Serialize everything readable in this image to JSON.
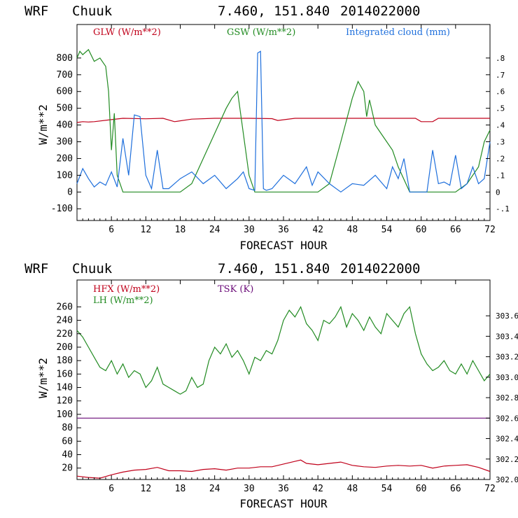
{
  "colors": {
    "red": "#c0001a",
    "green": "#228b22",
    "blue": "#1e6fdc",
    "purple": "#6a0a78",
    "axis": "#000000"
  },
  "chart_data": [
    {
      "type": "line",
      "header": {
        "model": "WRF",
        "station": "Chuuk",
        "coords": "7.460, 151.840",
        "date": "2014022000"
      },
      "xlabel": "FORECAST HOUR",
      "ylabel": "W/m**2",
      "xlim": [
        0,
        72
      ],
      "ylim": [
        -170,
        1000
      ],
      "xticks": [
        "6",
        "12",
        "18",
        "24",
        "30",
        "36",
        "42",
        "48",
        "54",
        "60",
        "66",
        "72"
      ],
      "yticks": [
        "-100",
        "0",
        "100",
        "200",
        "300",
        "400",
        "500",
        "600",
        "700",
        "800"
      ],
      "y2lim": [
        -0.17,
        1.0
      ],
      "y2ticks": [
        "-.1",
        "0",
        ".1",
        ".2",
        ".3",
        ".4",
        ".5",
        ".6",
        ".7",
        ".8"
      ],
      "series": [
        {
          "name": "GLW (W/m**2)",
          "color": "red",
          "axis": "left",
          "x": [
            0,
            1,
            2,
            3,
            6,
            8,
            12,
            15,
            17,
            20,
            24,
            30,
            34,
            35,
            38,
            46,
            50,
            54,
            59,
            60,
            62,
            63,
            70,
            72
          ],
          "y": [
            415,
            420,
            418,
            420,
            432,
            440,
            437,
            440,
            420,
            435,
            440,
            440,
            438,
            427,
            440,
            440,
            440,
            440,
            440,
            420,
            420,
            440,
            440,
            440
          ]
        },
        {
          "name": "GSW (W/m**2)",
          "color": "green",
          "axis": "left",
          "x": [
            0,
            0.5,
            1,
            2,
            3,
            4,
            5,
            5.5,
            6,
            6.5,
            7,
            8,
            10,
            18,
            20,
            22,
            24,
            26,
            27,
            28,
            30,
            31,
            33,
            35,
            42,
            44,
            46,
            48,
            49,
            50,
            50.5,
            51,
            52,
            53,
            55,
            56,
            58,
            66,
            68,
            70,
            71,
            72
          ],
          "y": [
            800,
            840,
            820,
            850,
            780,
            800,
            750,
            600,
            250,
            470,
            100,
            0,
            0,
            0,
            50,
            200,
            350,
            500,
            560,
            600,
            100,
            0,
            0,
            0,
            0,
            50,
            300,
            560,
            660,
            600,
            450,
            550,
            400,
            350,
            250,
            150,
            0,
            0,
            50,
            150,
            300,
            370
          ]
        },
        {
          "name": "Integrated cloud (mm)",
          "color": "blue",
          "axis": "right",
          "x": [
            0,
            1,
            2,
            3,
            4,
            5,
            6,
            7,
            8,
            9,
            10,
            11,
            12,
            13,
            14,
            15,
            16,
            18,
            20,
            22,
            24,
            26,
            28,
            29,
            30,
            31,
            31.5,
            32,
            32.5,
            33,
            34,
            36,
            38,
            40,
            41,
            42,
            44,
            46,
            48,
            50,
            52,
            54,
            55,
            56,
            57,
            58,
            60,
            61,
            62,
            63,
            64,
            65,
            66,
            67,
            68,
            69,
            70,
            71,
            72
          ],
          "y": [
            0.05,
            0.14,
            0.08,
            0.03,
            0.06,
            0.04,
            0.12,
            0.03,
            0.32,
            0.1,
            0.46,
            0.45,
            0.1,
            0.02,
            0.25,
            0.02,
            0.02,
            0.08,
            0.12,
            0.05,
            0.1,
            0.02,
            0.08,
            0.12,
            0.02,
            0.01,
            0.83,
            0.84,
            0.02,
            0.01,
            0.02,
            0.1,
            0.05,
            0.15,
            0.04,
            0.12,
            0.05,
            0.0,
            0.05,
            0.04,
            0.1,
            0.02,
            0.15,
            0.08,
            0.2,
            0.0,
            0.0,
            0.0,
            0.25,
            0.05,
            0.06,
            0.04,
            0.22,
            0.02,
            0.05,
            0.15,
            0.05,
            0.08,
            0.3
          ]
        }
      ]
    },
    {
      "type": "line",
      "header": {
        "model": "WRF",
        "station": "Chuuk",
        "coords": "7.460, 151.840",
        "date": "2014022000"
      },
      "xlabel": "FORECAST HOUR",
      "ylabel": "W/m**2",
      "xlim": [
        0,
        72
      ],
      "ylim": [
        3,
        300
      ],
      "xticks": [
        "6",
        "12",
        "18",
        "24",
        "30",
        "36",
        "42",
        "48",
        "54",
        "60",
        "66",
        "72"
      ],
      "yticks": [
        "20",
        "40",
        "60",
        "80",
        "100",
        "120",
        "140",
        "160",
        "180",
        "200",
        "220",
        "240",
        "260"
      ],
      "y2lim": [
        302.0,
        303.95
      ],
      "y2ticks": [
        "302.0",
        "302.2",
        "302.4",
        "302.6",
        "302.8",
        "303.0",
        "303.2",
        "303.4",
        "303.6"
      ],
      "series": [
        {
          "name": "HFX (W/m**2)",
          "color": "red",
          "axis": "left",
          "x": [
            0,
            2,
            4,
            6,
            8,
            10,
            12,
            14,
            16,
            18,
            20,
            22,
            24,
            26,
            28,
            30,
            32,
            34,
            36,
            38,
            39,
            40,
            42,
            44,
            46,
            48,
            50,
            52,
            54,
            56,
            58,
            60,
            62,
            64,
            66,
            68,
            70,
            72
          ],
          "y": [
            8,
            6,
            5,
            10,
            14,
            17,
            18,
            21,
            16,
            16,
            15,
            18,
            19,
            17,
            20,
            20,
            22,
            22,
            26,
            30,
            32,
            27,
            25,
            27,
            29,
            24,
            22,
            21,
            23,
            24,
            23,
            24,
            20,
            23,
            24,
            25,
            21,
            15
          ]
        },
        {
          "name": "LH (W/m**2)",
          "color": "green",
          "axis": "left",
          "x": [
            0,
            1,
            2,
            3,
            4,
            5,
            6,
            7,
            8,
            9,
            10,
            11,
            12,
            13,
            14,
            15,
            16,
            17,
            18,
            19,
            20,
            21,
            22,
            23,
            24,
            25,
            26,
            27,
            28,
            29,
            30,
            31,
            32,
            33,
            34,
            35,
            36,
            37,
            38,
            39,
            40,
            41,
            42,
            43,
            44,
            45,
            46,
            47,
            48,
            49,
            50,
            51,
            52,
            53,
            54,
            55,
            56,
            57,
            58,
            59,
            60,
            61,
            62,
            63,
            64,
            65,
            66,
            67,
            68,
            69,
            70,
            71,
            72
          ],
          "y": [
            225,
            215,
            200,
            185,
            170,
            165,
            180,
            160,
            175,
            155,
            165,
            160,
            140,
            150,
            170,
            145,
            140,
            135,
            130,
            135,
            155,
            140,
            145,
            180,
            200,
            190,
            205,
            185,
            195,
            180,
            160,
            185,
            180,
            195,
            190,
            210,
            240,
            255,
            245,
            260,
            235,
            225,
            210,
            240,
            235,
            245,
            260,
            230,
            250,
            240,
            225,
            245,
            230,
            220,
            250,
            240,
            230,
            250,
            260,
            220,
            190,
            175,
            165,
            170,
            180,
            165,
            160,
            175,
            160,
            180,
            165,
            150,
            160
          ]
        },
        {
          "name": "TSK (K)",
          "color": "purple",
          "axis": "right",
          "x": [
            0,
            72
          ],
          "y": [
            302.6,
            302.6
          ]
        }
      ]
    }
  ]
}
